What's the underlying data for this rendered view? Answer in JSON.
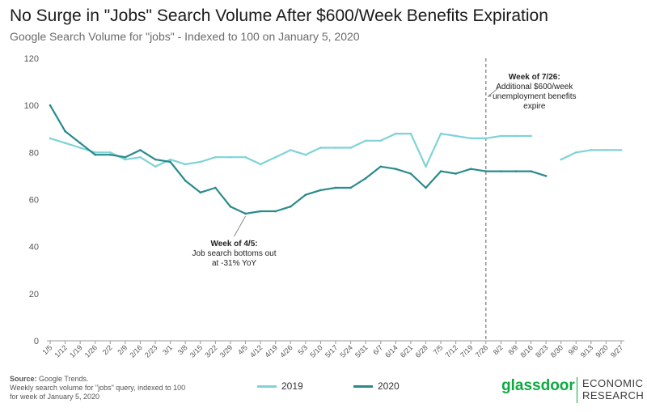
{
  "header": {
    "title": "No Surge in \"Jobs\" Search Volume After $600/Week Benefits Expiration",
    "subtitle": "Google Search Volume for \"jobs\" - Indexed to 100 on January 5, 2020"
  },
  "footer": {
    "source_label": "Source:",
    "source_text": " Google Trends.",
    "source_note": "Weekly search volume for \"jobs\" query, indexed to 100 for week of January 5, 2020",
    "brand": "glassdoor",
    "brand_sub_1": "ECONOMIC",
    "brand_sub_2": "RESEARCH"
  },
  "colors": {
    "series_2019": "#7fd3d6",
    "series_2020": "#2a8a8c",
    "brand": "#0caa41"
  },
  "chart_data": {
    "type": "line",
    "ylim": [
      0,
      120
    ],
    "yticks": [
      0,
      20,
      40,
      60,
      80,
      100,
      120
    ],
    "grid": false,
    "legend_position": "bottom",
    "categories": [
      "1/5",
      "1/12",
      "1/19",
      "1/26",
      "2/2",
      "2/9",
      "2/16",
      "2/23",
      "3/1",
      "3/8",
      "3/15",
      "3/22",
      "3/29",
      "4/5",
      "4/12",
      "4/19",
      "4/26",
      "5/3",
      "5/10",
      "5/17",
      "5/24",
      "5/31",
      "6/7",
      "6/14",
      "6/21",
      "6/28",
      "7/5",
      "7/12",
      "7/19",
      "7/26",
      "8/2",
      "8/9",
      "8/16",
      "8/23",
      "8/30",
      "9/6",
      "9/13",
      "9/20",
      "9/27"
    ],
    "series": [
      {
        "name": "2019",
        "values": [
          86,
          84,
          82,
          80,
          80,
          77,
          78,
          74,
          77,
          75,
          76,
          78,
          78,
          78,
          75,
          78,
          81,
          79,
          82,
          82,
          82,
          85,
          85,
          88,
          88,
          74,
          88,
          87,
          86,
          86,
          87,
          87,
          87,
          null,
          77,
          80,
          81,
          81,
          81
        ]
      },
      {
        "name": "2020",
        "values": [
          100,
          89,
          84,
          79,
          79,
          78,
          81,
          77,
          76,
          68,
          63,
          65,
          57,
          54,
          55,
          55,
          57,
          62,
          64,
          65,
          65,
          69,
          74,
          73,
          71,
          65,
          72,
          71,
          73,
          72,
          72,
          72,
          72,
          70,
          null,
          null,
          null,
          null,
          null
        ]
      }
    ],
    "annotations": [
      {
        "category": "4/5",
        "lines": [
          "Week of 4/5:",
          "Job search bottoms out",
          "at -31% YoY"
        ]
      },
      {
        "category": "7/26",
        "lines": [
          "Week of 7/26:",
          "Additional $600/week",
          "unemployment benefits",
          "expire"
        ]
      }
    ],
    "marker_category": "7/26"
  }
}
